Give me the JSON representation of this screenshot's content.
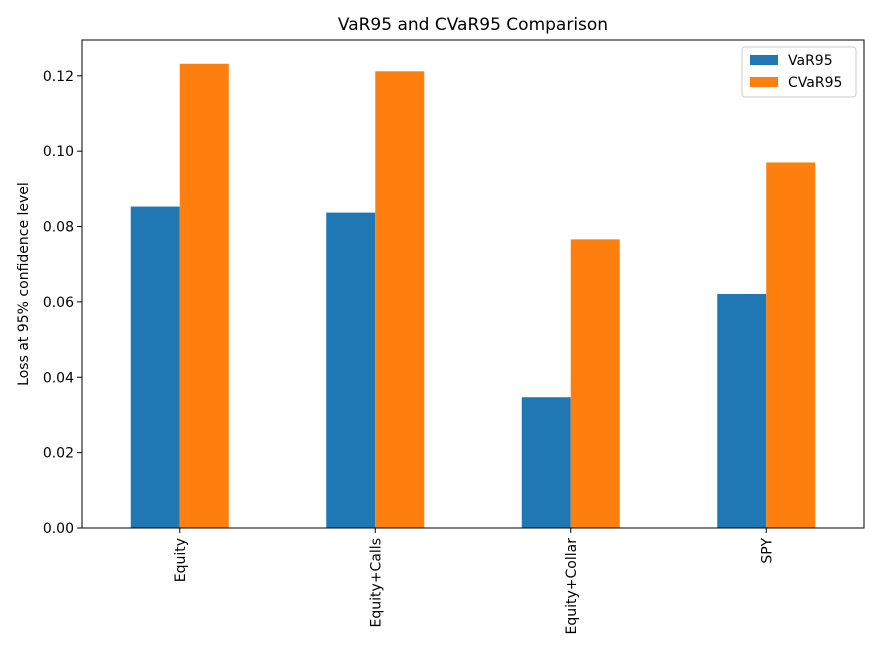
{
  "chart_data": {
    "type": "bar",
    "title": "VaR95 and CVaR95 Comparison",
    "xlabel": "",
    "ylabel": "Loss at 95% confidence level",
    "categories": [
      "Equity",
      "Equity+Calls",
      "Equity+Collar",
      "SPY"
    ],
    "series": [
      {
        "name": "VaR95",
        "color": "#1f77b4",
        "values": [
          0.0853,
          0.0837,
          0.0347,
          0.0621
        ]
      },
      {
        "name": "CVaR95",
        "color": "#ff7f0e",
        "values": [
          0.1232,
          0.1212,
          0.0766,
          0.097
        ]
      }
    ],
    "ylim": [
      0,
      0.1295
    ],
    "yticks": [
      "0.00",
      "0.02",
      "0.04",
      "0.06",
      "0.08",
      "0.10",
      "0.12"
    ],
    "x_tick_rotation": "vertical",
    "legend": "top-right",
    "grid": false
  }
}
